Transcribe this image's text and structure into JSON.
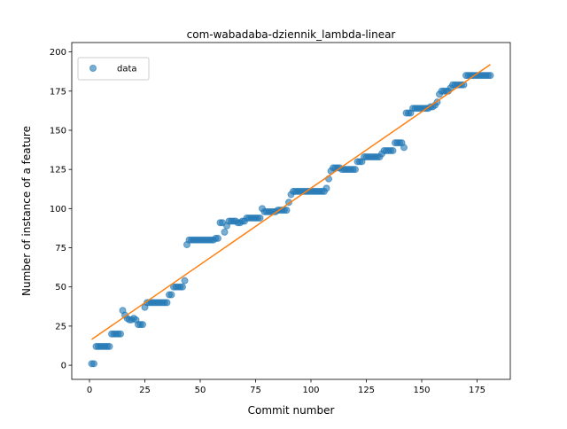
{
  "chart_data": {
    "type": "scatter",
    "title": "com-wabadaba-dziennik_lambda-linear",
    "x_label": "Commit number",
    "y_label": "Number of instance of a feature",
    "xlim": [
      -8,
      190
    ],
    "ylim": [
      -9,
      206
    ],
    "xticks": [
      0,
      25,
      50,
      75,
      100,
      125,
      150,
      175
    ],
    "yticks": [
      0,
      25,
      50,
      75,
      100,
      125,
      150,
      175,
      200
    ],
    "legend": "upper left",
    "series": [
      {
        "name": "data",
        "type": "scatter",
        "color": "#1f77b4",
        "x": [
          1,
          2,
          3,
          4,
          5,
          6,
          7,
          8,
          9,
          10,
          11,
          12,
          13,
          14,
          15,
          16,
          17,
          18,
          19,
          20,
          21,
          22,
          23,
          24,
          25,
          26,
          27,
          28,
          29,
          30,
          31,
          32,
          33,
          34,
          35,
          36,
          37,
          38,
          39,
          40,
          41,
          42,
          43,
          44,
          45,
          46,
          47,
          48,
          49,
          50,
          51,
          52,
          53,
          54,
          55,
          56,
          57,
          58,
          59,
          60,
          61,
          62,
          63,
          64,
          65,
          66,
          67,
          68,
          69,
          70,
          71,
          72,
          73,
          74,
          75,
          76,
          77,
          78,
          79,
          80,
          81,
          82,
          83,
          84,
          85,
          86,
          87,
          88,
          89,
          90,
          91,
          92,
          93,
          94,
          95,
          96,
          97,
          98,
          99,
          100,
          101,
          102,
          103,
          104,
          105,
          106,
          107,
          108,
          109,
          110,
          111,
          112,
          113,
          114,
          115,
          116,
          117,
          118,
          119,
          120,
          121,
          122,
          123,
          124,
          125,
          126,
          127,
          128,
          129,
          130,
          131,
          132,
          133,
          134,
          135,
          136,
          137,
          138,
          139,
          140,
          141,
          142,
          143,
          144,
          145,
          146,
          147,
          148,
          149,
          150,
          151,
          152,
          153,
          154,
          155,
          156,
          157,
          158,
          159,
          160,
          161,
          162,
          163,
          164,
          165,
          166,
          167,
          168,
          169,
          170,
          171,
          172,
          173,
          174,
          175,
          176,
          177,
          178,
          179,
          180,
          181
        ],
        "values": [
          1,
          1,
          12,
          12,
          12,
          12,
          12,
          12,
          12,
          20,
          20,
          20,
          20,
          20,
          35,
          32,
          30,
          29,
          29,
          30,
          29,
          26,
          26,
          26,
          37,
          40,
          40,
          40,
          40,
          40,
          40,
          40,
          40,
          40,
          40,
          45,
          45,
          50,
          50,
          50,
          50,
          50,
          54,
          77,
          80,
          80,
          80,
          80,
          80,
          80,
          80,
          80,
          80,
          80,
          80,
          80,
          81,
          81,
          91,
          91,
          85,
          89,
          92,
          92,
          92,
          92,
          91,
          91,
          92,
          92,
          94,
          94,
          94,
          94,
          94,
          94,
          94,
          100,
          98,
          98,
          98,
          98,
          98,
          98,
          99,
          99,
          99,
          99,
          99,
          104,
          109,
          111,
          111,
          111,
          111,
          111,
          111,
          111,
          111,
          111,
          111,
          111,
          111,
          111,
          111,
          111,
          113,
          119,
          124,
          126,
          126,
          126,
          126,
          125,
          125,
          125,
          125,
          125,
          125,
          125,
          130,
          130,
          130,
          133,
          133,
          133,
          133,
          133,
          133,
          133,
          133,
          135,
          137,
          137,
          137,
          137,
          137,
          142,
          142,
          142,
          142,
          139,
          161,
          161,
          161,
          164,
          164,
          164,
          164,
          164,
          164,
          164,
          164,
          165,
          165,
          166,
          168,
          173,
          175,
          175,
          175,
          175,
          177,
          179,
          179,
          179,
          179,
          179,
          179,
          185,
          185,
          185,
          185,
          185,
          185,
          185,
          185,
          185,
          185,
          185,
          185
        ]
      },
      {
        "type": "line",
        "color": "#ff7f0e",
        "x": [
          1,
          181
        ],
        "values": [
          16.5,
          192
        ]
      }
    ]
  }
}
